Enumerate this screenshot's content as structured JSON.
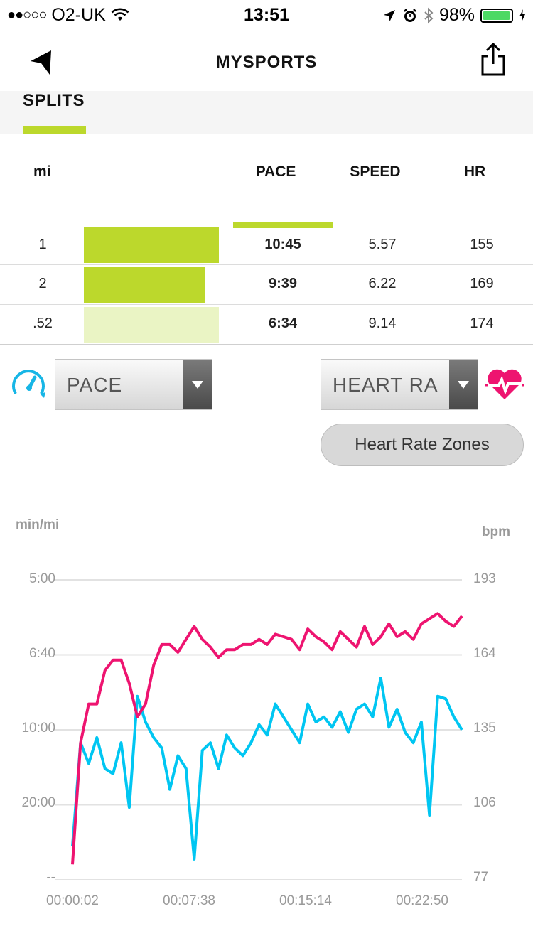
{
  "status": {
    "carrier": "O2-UK",
    "signal": "●●○○○",
    "time": "13:51",
    "battery": "98%",
    "battery_level": 0.98
  },
  "nav": {
    "title": "MYSPORTS"
  },
  "splits": {
    "title": "SPLITS",
    "columns": {
      "unit": "mi",
      "pace": "PACE",
      "speed": "SPEED",
      "hr": "HR"
    },
    "rows": [
      {
        "mi": "1",
        "pace": "10:45",
        "speed": "5.57",
        "hr": "155",
        "bar_fraction": 0.95,
        "highlight": false
      },
      {
        "mi": "2",
        "pace": "9:39",
        "speed": "6.22",
        "hr": "169",
        "bar_fraction": 0.85,
        "highlight": false
      },
      {
        "mi": ".52",
        "pace": "6:34",
        "speed": "9.14",
        "hr": "174",
        "bar_fraction": 0.95,
        "highlight": true
      }
    ]
  },
  "controls": {
    "left_select": "PACE",
    "right_select": "HEART RA",
    "zones_button": "Heart Rate Zones"
  },
  "colors": {
    "accent": "#bcd82c",
    "accent_light": "#eaf4c4",
    "pace": "#00c6f2",
    "heart": "#ee1470"
  },
  "chart_data": {
    "type": "line",
    "ylabel_left": "min/mi",
    "ylabel_right": "bpm",
    "y_left_ticks": [
      "5:00",
      "6:40",
      "10:00",
      "20:00",
      "--"
    ],
    "y_right_ticks": [
      "193",
      "164",
      "135",
      "106",
      "77"
    ],
    "ylim_right": [
      77,
      193
    ],
    "x_ticks": [
      "00:00:02",
      "00:07:38",
      "00:15:14",
      "00:22:50"
    ],
    "xlim_seconds": [
      2,
      1450
    ],
    "grid": true,
    "series": [
      {
        "name": "Heart Rate",
        "axis": "right",
        "x": [
          0,
          30,
          60,
          90,
          120,
          150,
          180,
          210,
          240,
          270,
          300,
          330,
          360,
          390,
          420,
          450,
          480,
          510,
          540,
          570,
          600,
          630,
          660,
          690,
          720,
          750,
          780,
          810,
          840,
          870,
          900,
          930,
          960,
          990,
          1020,
          1050,
          1080,
          1110,
          1140,
          1170,
          1200,
          1230,
          1260,
          1290,
          1320,
          1350,
          1380,
          1410,
          1440
        ],
        "values": [
          83,
          130,
          145,
          145,
          158,
          162,
          162,
          153,
          140,
          145,
          160,
          168,
          168,
          165,
          170,
          175,
          170,
          167,
          163,
          166,
          166,
          168,
          168,
          170,
          168,
          172,
          171,
          170,
          166,
          174,
          171,
          169,
          166,
          173,
          170,
          167,
          175,
          168,
          171,
          176,
          171,
          173,
          170,
          176,
          178,
          180,
          177,
          175,
          179
        ]
      },
      {
        "name": "Pace",
        "axis": "right",
        "x": [
          0,
          30,
          60,
          90,
          120,
          150,
          180,
          210,
          240,
          270,
          300,
          330,
          360,
          390,
          420,
          450,
          480,
          510,
          540,
          570,
          600,
          630,
          660,
          690,
          720,
          750,
          780,
          810,
          840,
          870,
          900,
          930,
          960,
          990,
          1020,
          1050,
          1080,
          1110,
          1140,
          1170,
          1200,
          1230,
          1260,
          1290,
          1320,
          1350,
          1380,
          1410,
          1440
        ],
        "values": [
          90,
          130,
          122,
          132,
          120,
          118,
          130,
          105,
          148,
          138,
          132,
          128,
          112,
          125,
          120,
          85,
          127,
          130,
          120,
          133,
          128,
          125,
          130,
          137,
          133,
          145,
          140,
          135,
          130,
          145,
          138,
          140,
          136,
          142,
          134,
          143,
          145,
          140,
          155,
          136,
          143,
          134,
          130,
          138,
          102,
          148,
          147,
          140,
          135
        ]
      }
    ]
  }
}
